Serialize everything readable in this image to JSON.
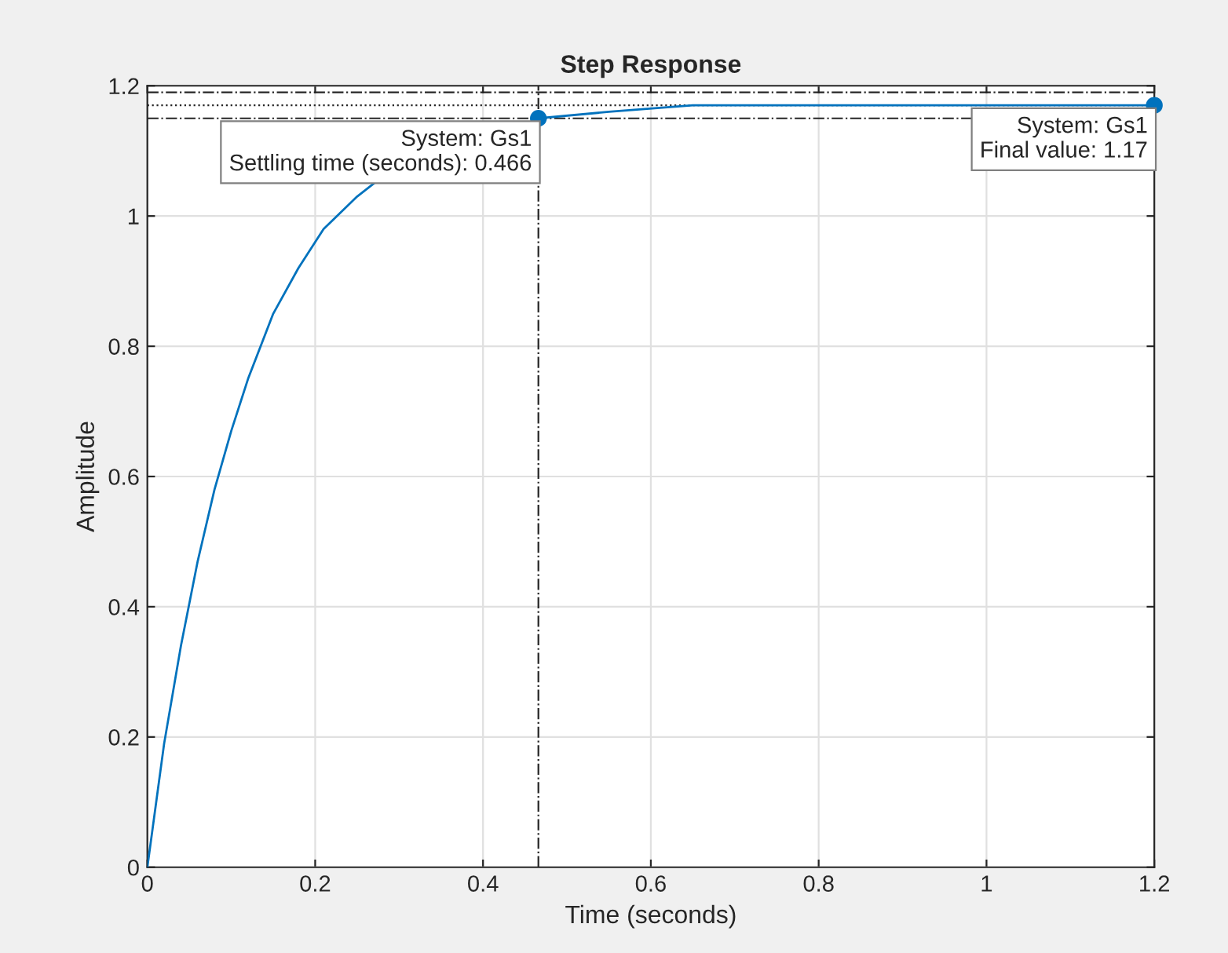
{
  "chart_data": {
    "type": "line",
    "title": "Step Response",
    "xlabel": "Time (seconds)",
    "ylabel": "Amplitude",
    "series": [
      {
        "color": "#0072bd",
        "x": [
          0,
          0.02,
          0.04,
          0.06,
          0.08,
          0.1,
          0.12,
          0.15,
          0.18,
          0.21,
          0.25,
          0.27,
          0.3,
          0.35,
          0.4,
          0.466,
          0.55,
          0.65,
          0.8,
          1.0,
          1.2
        ],
        "values": [
          0,
          0.19,
          0.34,
          0.47,
          0.58,
          0.67,
          0.75,
          0.85,
          0.92,
          0.98,
          1.03,
          1.05,
          null,
          null,
          null,
          1.15,
          1.16,
          1.17,
          1.17,
          1.17,
          1.17
        ]
      },
      {
        "type": "scatter",
        "marker": "circle",
        "color": "#0072bd",
        "x": [
          0.466,
          1.2
        ],
        "values": [
          1.15,
          1.17
        ]
      }
    ],
    "xlim": [
      0,
      1.2
    ],
    "ylim": [
      0,
      1.2
    ],
    "xticks": [
      0,
      0.2,
      0.4,
      0.6,
      0.8,
      1,
      1.2
    ],
    "yticks": [
      0,
      0.2,
      0.4,
      0.6,
      0.8,
      1,
      1.2
    ],
    "ref_lines": [
      {
        "axis": "y",
        "value": 1.17,
        "color": "#262626",
        "line_style": "dotted"
      },
      {
        "axis": "y",
        "value": 1.15,
        "color": "#262626",
        "line_style": "dashdot"
      },
      {
        "axis": "y",
        "value": 1.19,
        "color": "#262626",
        "line_style": "dashdot"
      },
      {
        "axis": "x",
        "value": 0.466,
        "color": "#262626",
        "line_style": "dashdot"
      }
    ],
    "annotations": [
      {
        "text": "System: Gs1\nSettling time (seconds): 0.466",
        "x": 0.466,
        "y": 1.15
      },
      {
        "text": "System: Gs1\nFinal value: 1.17",
        "x": 1.2,
        "y": 1.17
      }
    ],
    "grid": true,
    "line_style": "solid"
  }
}
